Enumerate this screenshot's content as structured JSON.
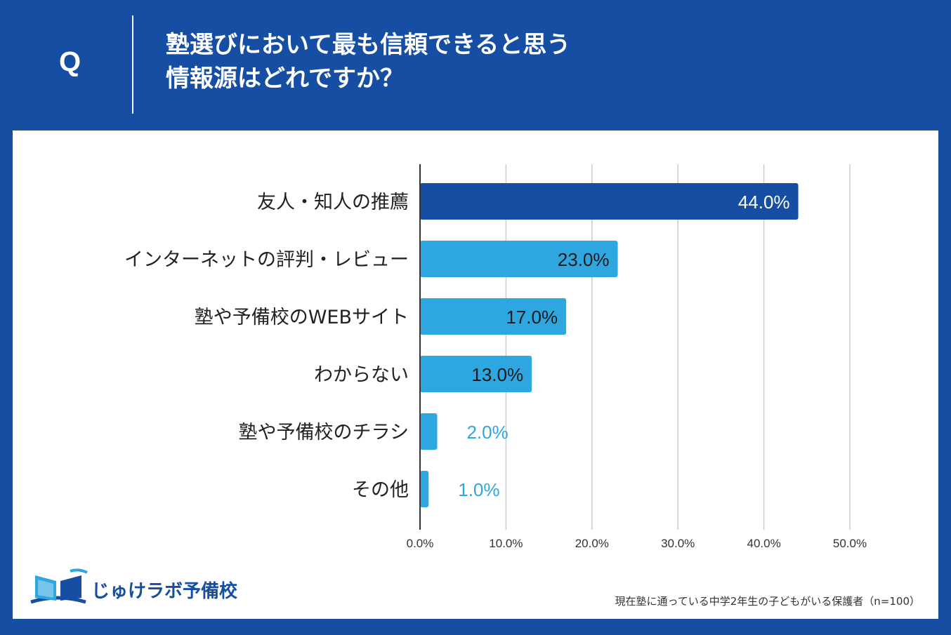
{
  "header": {
    "q_label": "Q",
    "title_line1": "塾選びにおいて最も信頼できると思う",
    "title_line2": "情報源はどれですか？"
  },
  "colors": {
    "brand": "#164ea3",
    "bar_primary": "#164ea3",
    "bar_secondary": "#2ea7e0",
    "grid": "#cccccc",
    "axis": "#333333"
  },
  "chart_data": {
    "type": "bar",
    "orientation": "horizontal",
    "title": "塾選びにおいて最も信頼できると思う情報源はどれですか？",
    "categories": [
      "友人・知人の推薦",
      "インターネットの評判・レビュー",
      "塾や予備校のWEBサイト",
      "わからない",
      "塾や予備校のチラシ",
      "その他"
    ],
    "values": [
      44.0,
      23.0,
      17.0,
      13.0,
      2.0,
      1.0
    ],
    "value_labels": [
      "44.0%",
      "23.0%",
      "17.0%",
      "13.0%",
      "2.0%",
      "1.0%"
    ],
    "xlim": [
      0,
      50
    ],
    "xticks": [
      0,
      10,
      20,
      30,
      40,
      50
    ],
    "xtick_labels": [
      "0.0%",
      "10.0%",
      "20.0%",
      "30.0%",
      "40.0%",
      "50.0%"
    ],
    "unit": "%",
    "grid": true,
    "xlabel": "",
    "ylabel": ""
  },
  "logo": {
    "text": "じゅけラボ予備校"
  },
  "footnote": "現在塾に通っている中学2年生の子どもがいる保護者（n=100）"
}
